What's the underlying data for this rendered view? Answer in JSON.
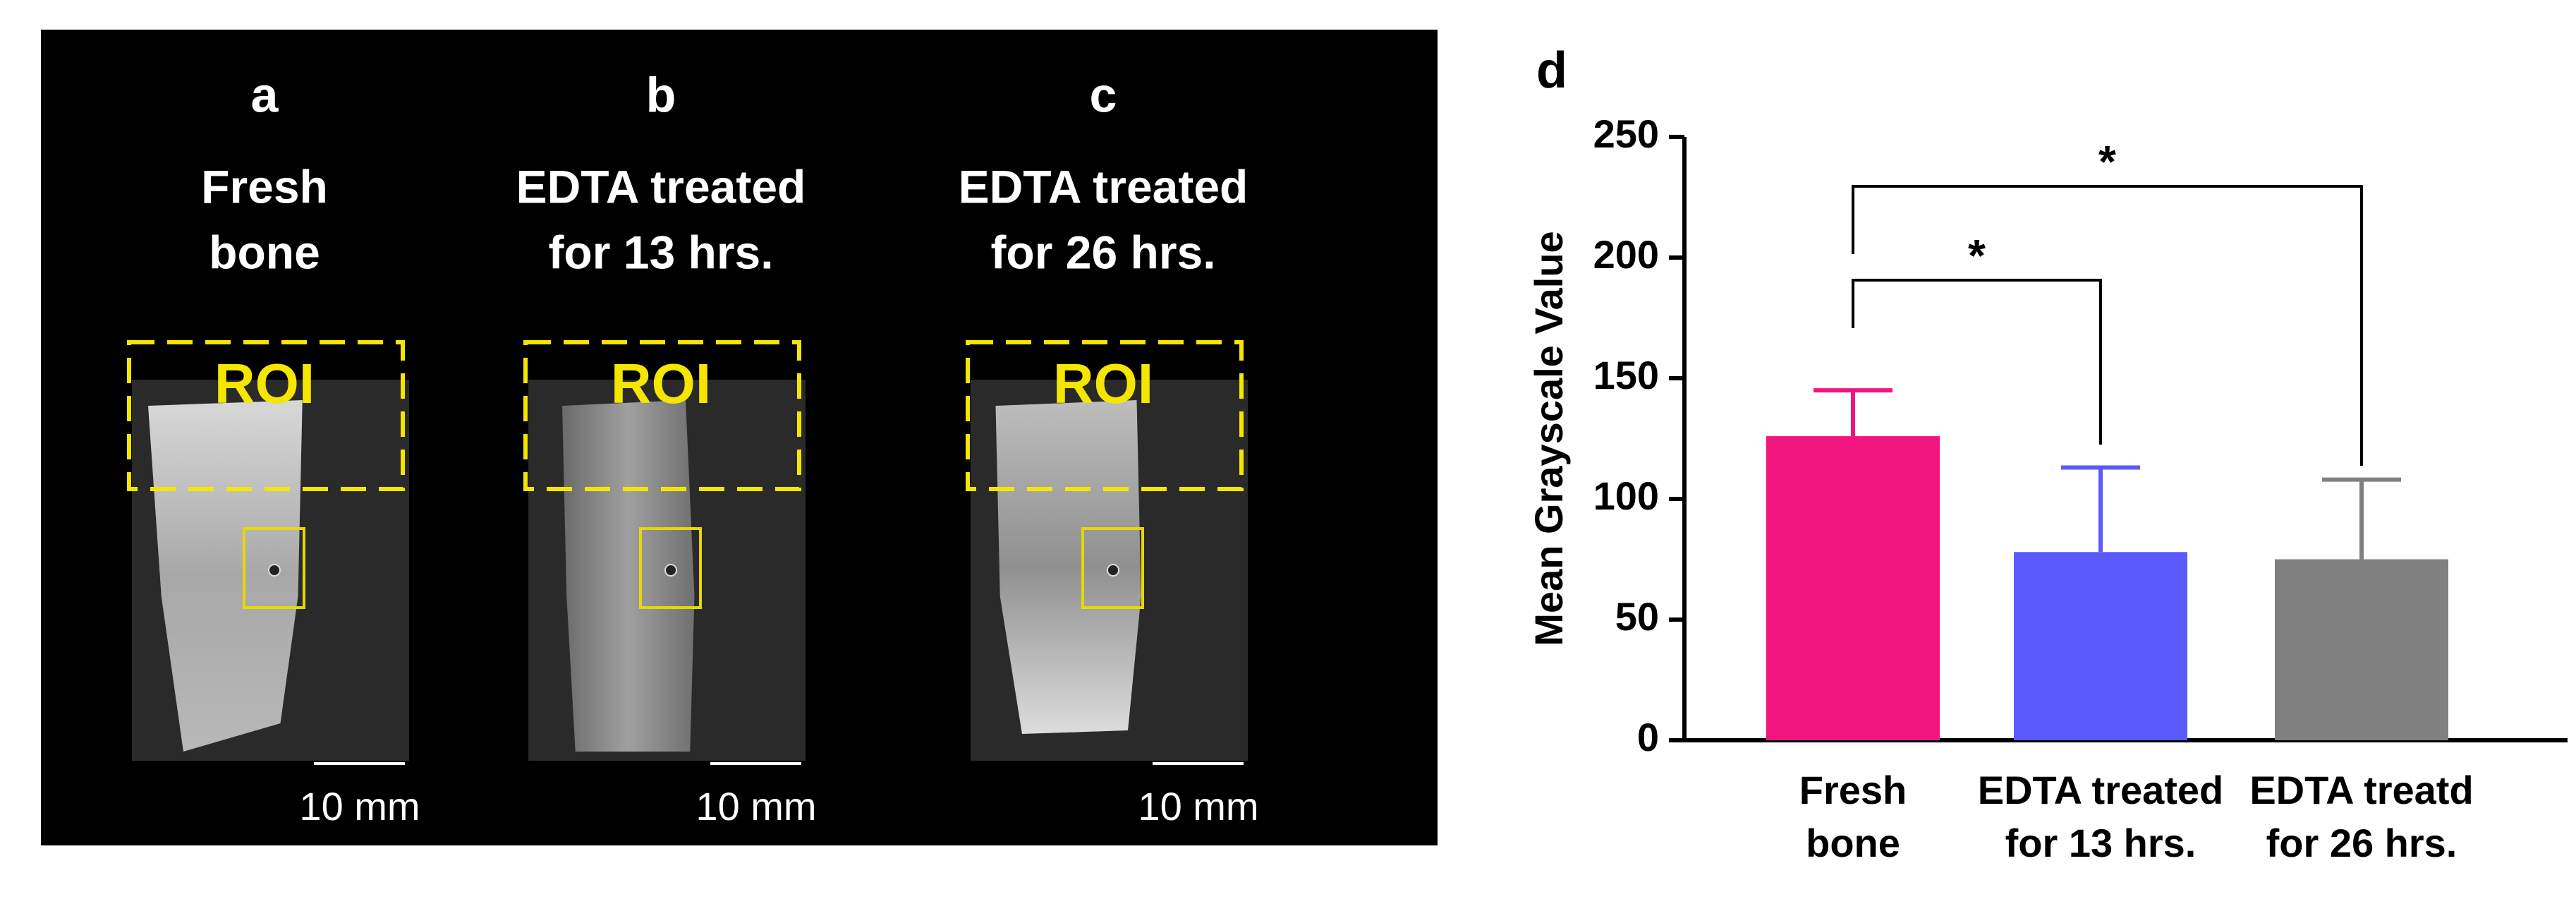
{
  "panels": [
    {
      "letter": "a",
      "title": [
        "Fresh",
        "bone"
      ],
      "roi": "ROI",
      "scale": "10 mm"
    },
    {
      "letter": "b",
      "title": [
        "EDTA treated",
        "for 13 hrs."
      ],
      "roi": "ROI",
      "scale": "10 mm"
    },
    {
      "letter": "c",
      "title": [
        "EDTA treated",
        "for 26 hrs."
      ],
      "roi": "ROI",
      "scale": "10 mm"
    }
  ],
  "chart_data": {
    "type": "bar",
    "panel_label": "d",
    "y_label": "Mean Grayscale Value",
    "categories": [
      [
        "Fresh",
        "bone"
      ],
      [
        "EDTA treated",
        "for 13 hrs."
      ],
      [
        "EDTA treatd",
        "for 26 hrs."
      ]
    ],
    "values": [
      126,
      78,
      75
    ],
    "errors": [
      19,
      35,
      33
    ],
    "colors": [
      "#f0157f",
      "#5a5aff",
      "#808080"
    ],
    "ylim": [
      0,
      250
    ],
    "yticks": [
      0,
      50,
      100,
      150,
      200,
      250
    ],
    "annotations": [
      "*",
      "*"
    ]
  }
}
